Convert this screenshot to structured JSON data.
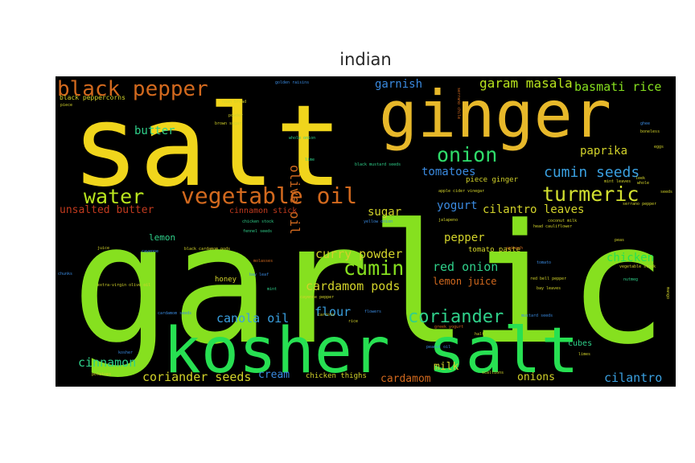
{
  "chart_data": {
    "type": "wordcloud",
    "title": "indian",
    "background": "#000000",
    "words": [
      {
        "text": "garlic",
        "weight": 1.0,
        "color": "#86e01f"
      },
      {
        "text": "salt",
        "weight": 0.9,
        "color": "#f0d51c"
      },
      {
        "text": "ginger",
        "weight": 0.6,
        "color": "#e7b82a"
      },
      {
        "text": "kosher salt",
        "weight": 0.55,
        "color": "#27e052"
      },
      {
        "text": "vegetable oil",
        "weight": 0.26,
        "color": "#d2691e"
      },
      {
        "text": "black pepper",
        "weight": 0.25,
        "color": "#d2691e"
      },
      {
        "text": "turmeric",
        "weight": 0.22,
        "color": "#d2e02f"
      },
      {
        "text": "water",
        "weight": 0.22,
        "color": "#b9e51e"
      },
      {
        "text": "onion",
        "weight": 0.22,
        "color": "#2fdc6a"
      },
      {
        "text": "cumin",
        "weight": 0.22,
        "color": "#86e01f"
      },
      {
        "text": "coriander",
        "weight": 0.21,
        "color": "#2fd08a"
      },
      {
        "text": "cumin seeds",
        "weight": 0.17,
        "color": "#3aa0e0"
      },
      {
        "text": "garam masala",
        "weight": 0.15,
        "color": "#b9e51e"
      },
      {
        "text": "olive oil",
        "weight": 0.14,
        "color": "#d2691e"
      },
      {
        "text": "cardamom pods",
        "weight": 0.14,
        "color": "#d2d22a"
      },
      {
        "text": "basmati rice",
        "weight": 0.13,
        "color": "#86e01f"
      },
      {
        "text": "curry powder",
        "weight": 0.13,
        "color": "#d2d22a"
      },
      {
        "text": "red onion",
        "weight": 0.13,
        "color": "#2fd08a"
      },
      {
        "text": "chicken",
        "weight": 0.13,
        "color": "#27e052"
      },
      {
        "text": "canola oil",
        "weight": 0.13,
        "color": "#3aa0e0"
      },
      {
        "text": "cinnamon",
        "weight": 0.13,
        "color": "#2fd08a"
      },
      {
        "text": "coriander seeds",
        "weight": 0.13,
        "color": "#d2d22a"
      },
      {
        "text": "flour",
        "weight": 0.13,
        "color": "#3aa0e0"
      },
      {
        "text": "cilantro",
        "weight": 0.13,
        "color": "#3aa0e0"
      },
      {
        "text": "butter",
        "weight": 0.12,
        "color": "#2fd08a"
      },
      {
        "text": "garnish",
        "weight": 0.12,
        "color": "#3a8ae0"
      },
      {
        "text": "paprika",
        "weight": 0.12,
        "color": "#d2d22a"
      },
      {
        "text": "tomatoes",
        "weight": 0.12,
        "color": "#3a8ae0"
      },
      {
        "text": "yogurt",
        "weight": 0.12,
        "color": "#3a8ae0"
      },
      {
        "text": "sugar",
        "weight": 0.12,
        "color": "#d2d22a"
      },
      {
        "text": "pepper",
        "weight": 0.12,
        "color": "#d2d22a"
      },
      {
        "text": "cilantro leaves",
        "weight": 0.12,
        "color": "#d2d22a"
      },
      {
        "text": "unsalted butter",
        "weight": 0.11,
        "color": "#c03a1e"
      },
      {
        "text": "cardamom",
        "weight": 0.11,
        "color": "#d2691e"
      },
      {
        "text": "onions",
        "weight": 0.11,
        "color": "#d2d22a"
      },
      {
        "text": "milk",
        "weight": 0.11,
        "color": "#d2d22a"
      },
      {
        "text": "cream",
        "weight": 0.11,
        "color": "#3a8ae0"
      },
      {
        "text": "lemon juice",
        "weight": 0.1,
        "color": "#d2691e"
      },
      {
        "text": "lemon",
        "weight": 0.09,
        "color": "#2fd08a"
      },
      {
        "text": "cinnamon stick",
        "weight": 0.09,
        "color": "#c03a1e"
      },
      {
        "text": "cubes",
        "weight": 0.07,
        "color": "#2fd08a"
      },
      {
        "text": "piece ginger",
        "weight": 0.06,
        "color": "#d2d22a"
      },
      {
        "text": "tomato paste",
        "weight": 0.06,
        "color": "#d2d22a"
      },
      {
        "text": "chicken thighs",
        "weight": 0.06,
        "color": "#d2d22a"
      },
      {
        "text": "honey",
        "weight": 0.06,
        "color": "#d2d22a"
      },
      {
        "text": "black peppercorns",
        "weight": 0.05,
        "color": "#d2d22a"
      },
      {
        "text": "naan bread",
        "weight": 0.04,
        "color": "#d2d22a"
      },
      {
        "text": "brown sugar",
        "weight": 0.04,
        "color": "#d2d22a"
      },
      {
        "text": "golden raisins",
        "weight": 0.04,
        "color": "#3a8ae0"
      },
      {
        "text": "powder",
        "weight": 0.04,
        "color": "#d2d22a"
      },
      {
        "text": "whole onion",
        "weight": 0.04,
        "color": "#2fd08a"
      },
      {
        "text": "black mustard seeds",
        "weight": 0.04,
        "color": "#2fd08a"
      },
      {
        "text": "apple cider vinegar",
        "weight": 0.04,
        "color": "#d2d22a"
      },
      {
        "text": "jalapeno",
        "weight": 0.04,
        "color": "#d2d22a"
      },
      {
        "text": "coconut milk",
        "weight": 0.04,
        "color": "#d2d22a"
      },
      {
        "text": "head cauliflower",
        "weight": 0.04,
        "color": "#d2d22a"
      },
      {
        "text": "chicken stock",
        "weight": 0.04,
        "color": "#2fd08a"
      },
      {
        "text": "fennel seeds",
        "weight": 0.04,
        "color": "#2fd08a"
      },
      {
        "text": "black cardamom pods",
        "weight": 0.04,
        "color": "#d2d22a"
      },
      {
        "text": "cayenne",
        "weight": 0.04,
        "color": "#3a8ae0"
      },
      {
        "text": "juice",
        "weight": 0.04,
        "color": "#d2d22a"
      },
      {
        "text": "molasses",
        "weight": 0.04,
        "color": "#d2691e"
      },
      {
        "text": "bay leaf",
        "weight": 0.04,
        "color": "#3a8ae0"
      },
      {
        "text": "mint",
        "weight": 0.04,
        "color": "#2fd08a"
      },
      {
        "text": "extra-virgin olive oil",
        "weight": 0.04,
        "color": "#d2d22a"
      },
      {
        "text": "cayenne pepper",
        "weight": 0.04,
        "color": "#d2d22a"
      },
      {
        "text": "chunks",
        "weight": 0.04,
        "color": "#3a8ae0"
      },
      {
        "text": "spinach",
        "weight": 0.04,
        "color": "#d2691e"
      },
      {
        "text": "peas",
        "weight": 0.04,
        "color": "#d2d22a"
      },
      {
        "text": "tomato",
        "weight": 0.04,
        "color": "#3a8ae0"
      },
      {
        "text": "red bell pepper",
        "weight": 0.04,
        "color": "#d2d22a"
      },
      {
        "text": "bay leaves",
        "weight": 0.04,
        "color": "#d2d22a"
      },
      {
        "text": "vegetable stock",
        "weight": 0.04,
        "color": "#d2d22a"
      },
      {
        "text": "nutmeg",
        "weight": 0.04,
        "color": "#2fd08a"
      },
      {
        "text": "mustard seeds",
        "weight": 0.04,
        "color": "#3a8ae0"
      },
      {
        "text": "greek yogurt",
        "weight": 0.04,
        "color": "#d2691e"
      },
      {
        "text": "half",
        "weight": 0.04,
        "color": "#d2d22a"
      },
      {
        "text": "peanut oil",
        "weight": 0.04,
        "color": "#3a8ae0"
      },
      {
        "text": "scallions",
        "weight": 0.04,
        "color": "#d2d22a"
      },
      {
        "text": "limes",
        "weight": 0.04,
        "color": "#d2d22a"
      },
      {
        "text": "potatoes",
        "weight": 0.04,
        "color": "#d2d22a"
      },
      {
        "text": "kosher",
        "weight": 0.04,
        "color": "#3a8ae0"
      },
      {
        "text": "ghee",
        "weight": 0.04,
        "color": "#3a8ae0"
      },
      {
        "text": "boneless",
        "weight": 0.04,
        "color": "#d2d22a"
      },
      {
        "text": "eggs",
        "weight": 0.04,
        "color": "#d2d22a"
      },
      {
        "text": "mint leaves",
        "weight": 0.04,
        "color": "#d2d22a"
      },
      {
        "text": "leek",
        "weight": 0.04,
        "color": "#d2d22a"
      },
      {
        "text": "whole",
        "weight": 0.04,
        "color": "#d2d22a"
      },
      {
        "text": "serrano pepper",
        "weight": 0.04,
        "color": "#d2d22a"
      },
      {
        "text": "seeds",
        "weight": 0.04,
        "color": "#d2d22a"
      },
      {
        "text": "lime",
        "weight": 0.04,
        "color": "#2fd08a"
      },
      {
        "text": "piece",
        "weight": 0.04,
        "color": "#d2d22a"
      },
      {
        "text": "yellow onion",
        "weight": 0.04,
        "color": "#3a8ae0"
      },
      {
        "text": "flowers",
        "weight": 0.04,
        "color": "#3a8ae0"
      },
      {
        "text": "rice",
        "weight": 0.04,
        "color": "#d2d22a"
      },
      {
        "text": "cardamom seeds",
        "weight": 0.04,
        "color": "#3a8ae0"
      },
      {
        "text": "serrano chile",
        "weight": 0.04,
        "color": "#d2691e"
      },
      {
        "text": "carrots",
        "weight": 0.04,
        "color": "#d2d22a"
      },
      {
        "text": "mango",
        "weight": 0.04,
        "color": "#d2d22a"
      }
    ]
  }
}
